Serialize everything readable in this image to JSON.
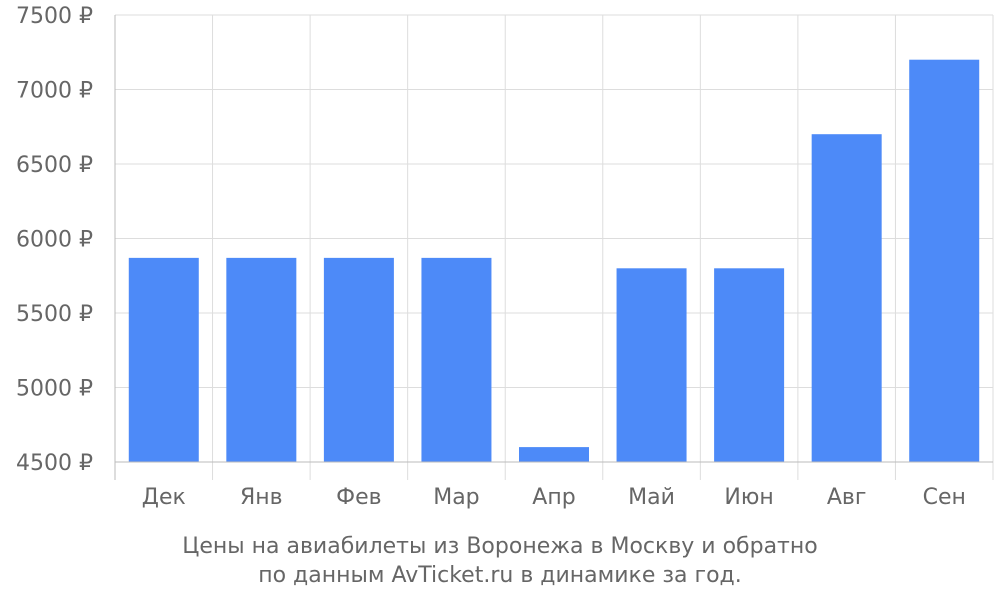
{
  "chart_data": {
    "type": "bar",
    "categories": [
      "Дек",
      "Янв",
      "Фев",
      "Мар",
      "Апр",
      "Май",
      "Июн",
      "Авг",
      "Сен"
    ],
    "values": [
      5870,
      5870,
      5870,
      5870,
      4600,
      5800,
      5800,
      6700,
      7200
    ],
    "y_ticks": [
      4500,
      5000,
      5500,
      6000,
      6500,
      7000,
      7500
    ],
    "y_tick_labels": [
      "4500 ₽",
      "5000 ₽",
      "5500 ₽",
      "6000 ₽",
      "6500 ₽",
      "7000 ₽",
      "7500 ₽"
    ],
    "ylim": [
      4500,
      7500
    ],
    "grid": true,
    "bar_color": "#4d8af8",
    "grid_color": "#dddddd",
    "caption": [
      "Цены на авиабилеты из Воронежа в Москву и обратно",
      "по данным AvTicket.ru в динамике за год."
    ]
  }
}
